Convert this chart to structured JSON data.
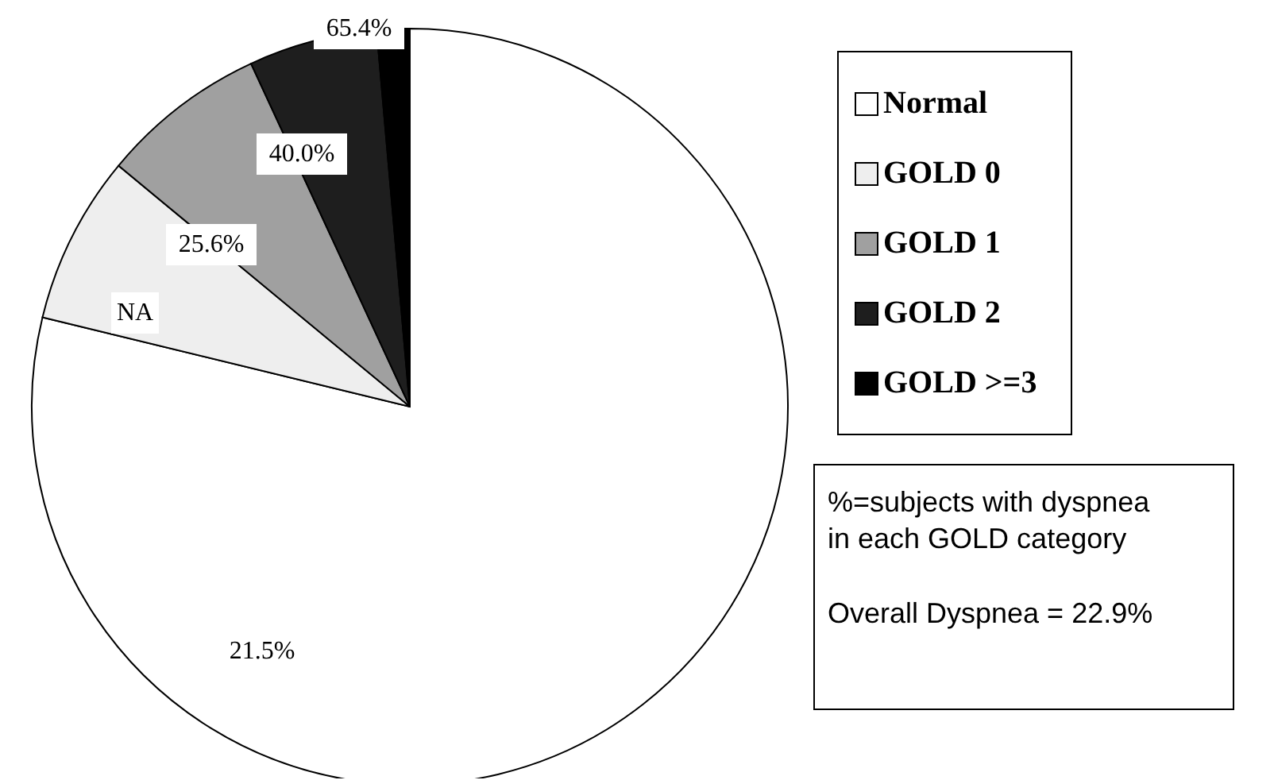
{
  "chart_data": {
    "type": "pie",
    "categories": [
      "Normal",
      "GOLD 0",
      "GOLD 1",
      "GOLD 2",
      "GOLD >=3"
    ],
    "values": [
      78.8,
      7.2,
      7.1,
      5.5,
      1.4
    ],
    "colors": [
      "#ffffff",
      "#eeeeee",
      "#a0a0a0",
      "#1e1e1e",
      "#000000"
    ],
    "legend": "right",
    "annotations": [
      {
        "text": "21.5%",
        "x": "Normal"
      },
      {
        "text": "NA",
        "x": "GOLD 0"
      },
      {
        "text": "25.6%",
        "x": "GOLD 1"
      },
      {
        "text": "40.0%",
        "x": "GOLD 2"
      },
      {
        "text": "65.4%",
        "x": "GOLD >=3"
      },
      "%=subjects with dyspnea\nin each GOLD category",
      "Overall Dyspnea = 22.9%"
    ]
  }
}
